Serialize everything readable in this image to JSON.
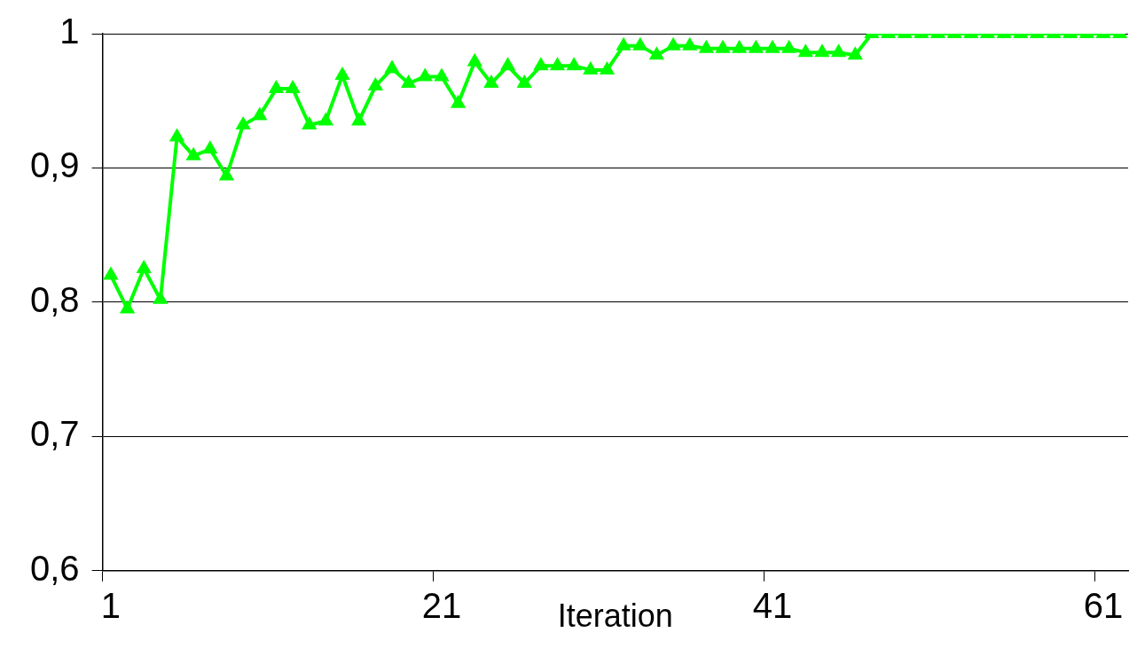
{
  "chart_data": {
    "type": "line",
    "xlabel": "Iteration",
    "categories": [
      "1",
      null,
      null,
      null,
      null,
      null,
      null,
      null,
      null,
      null,
      null,
      null,
      null,
      null,
      null,
      null,
      null,
      null,
      null,
      null,
      "21",
      null,
      null,
      null,
      null,
      null,
      null,
      null,
      null,
      null,
      null,
      null,
      null,
      null,
      null,
      null,
      null,
      null,
      null,
      null,
      "41",
      null,
      null,
      null,
      null,
      null,
      null,
      null,
      null,
      null,
      null,
      null,
      null,
      null,
      null,
      null,
      null,
      null,
      null,
      null,
      "61",
      null
    ],
    "series": [
      {
        "color": "#00ff00",
        "values": [
          0.82,
          0.795,
          0.825,
          0.802,
          0.923,
          0.909,
          0.914,
          0.894,
          0.932,
          0.939,
          0.959,
          0.959,
          0.932,
          0.935,
          0.969,
          0.935,
          0.961,
          0.974,
          0.963,
          0.968,
          0.968,
          0.948,
          0.979,
          0.963,
          0.976,
          0.963,
          0.976,
          0.976,
          0.976,
          0.973,
          0.973,
          0.991,
          0.991,
          0.984,
          0.991,
          0.991,
          0.989,
          0.989,
          0.989,
          0.989,
          0.989,
          0.989,
          0.986,
          0.986,
          0.986,
          0.984,
          1,
          1,
          1,
          1,
          1,
          1,
          1,
          1,
          1,
          1,
          1,
          1,
          1,
          1,
          1,
          1
        ]
      }
    ],
    "ylim": [
      0.6,
      1
    ],
    "yticks": [
      {
        "value": 0.6,
        "label": "0,6"
      },
      {
        "value": 0.7,
        "label": "0,7"
      },
      {
        "value": 0.8,
        "label": "0,8"
      },
      {
        "value": 0.9,
        "label": "0,9"
      },
      1
    ],
    "grid": "y",
    "legend": false,
    "marker": "triangle",
    "line_style": "solid"
  }
}
